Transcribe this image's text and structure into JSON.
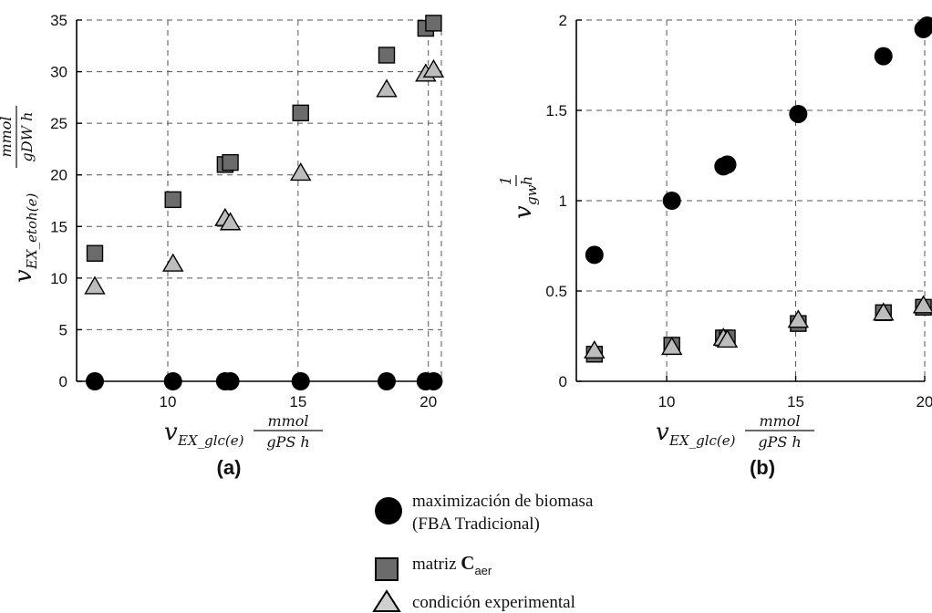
{
  "chart_data": [
    {
      "type": "scatter",
      "caption": "(a)",
      "xlabel": {
        "var": "v",
        "sub": "EX_glc(e)",
        "unit_num": "mmol",
        "unit_den": "gPS   h"
      },
      "ylabel": {
        "var": "v",
        "sub": "EX_etoh(e)",
        "unit_num": "mmol",
        "unit_den": "gDW  h"
      },
      "xlim": [
        6.5,
        20.5
      ],
      "ylim": [
        0,
        35
      ],
      "xticks": [
        10,
        15,
        20
      ],
      "yticks": [
        0,
        5,
        10,
        15,
        20,
        25,
        30,
        35
      ],
      "grid": true,
      "series": [
        {
          "name": "maximización de biomasa (FBA Tradicional)",
          "marker": "circle",
          "color": "#000000",
          "x": [
            7.2,
            10.2,
            12.2,
            12.4,
            15.1,
            18.4,
            19.9,
            20.2
          ],
          "y": [
            0,
            0,
            0,
            0,
            0,
            0,
            0,
            0
          ]
        },
        {
          "name": "matriz Caer",
          "marker": "square",
          "color": "#6b6b6b",
          "x": [
            7.2,
            10.2,
            12.2,
            12.4,
            15.1,
            18.4,
            19.9,
            20.2
          ],
          "y": [
            12.4,
            17.6,
            21.0,
            21.2,
            26.0,
            31.6,
            34.2,
            34.7
          ]
        },
        {
          "name": "condición experimental",
          "marker": "triangle",
          "color": "#bdbdbd",
          "x": [
            7.2,
            10.2,
            12.2,
            12.4,
            15.1,
            18.4,
            19.9,
            20.2
          ],
          "y": [
            9.2,
            11.4,
            15.8,
            15.4,
            20.2,
            28.3,
            29.8,
            30.2
          ]
        }
      ]
    },
    {
      "type": "scatter",
      "caption": "(b)",
      "xlabel": {
        "var": "v",
        "sub": "EX_glc(e)",
        "unit_num": "mmol",
        "unit_den": "gPS   h"
      },
      "ylabel": {
        "var": "v",
        "sub": "gw",
        "unit_num": "1",
        "unit_den": "h"
      },
      "xlim": [
        6.5,
        20.0
      ],
      "ylim": [
        0,
        2
      ],
      "xticks": [
        10,
        15,
        20
      ],
      "xticklabels": [
        "10",
        "15",
        "20"
      ],
      "yticks": [
        0,
        0.5,
        1,
        1.5,
        2
      ],
      "yticklabels": [
        "0",
        "0.5",
        "1",
        "1.5",
        "2"
      ],
      "grid": true,
      "series": [
        {
          "name": "maximización de biomasa (FBA Tradicional)",
          "marker": "circle",
          "color": "#000000",
          "x": [
            7.2,
            10.2,
            12.2,
            12.35,
            15.1,
            18.4,
            19.95,
            20.1
          ],
          "y": [
            0.7,
            1.0,
            1.19,
            1.2,
            1.48,
            1.8,
            1.95,
            1.97
          ]
        },
        {
          "name": "matriz Caer",
          "marker": "square",
          "color": "#6b6b6b",
          "x": [
            7.2,
            10.2,
            12.2,
            12.35,
            15.1,
            18.4,
            19.95
          ],
          "y": [
            0.15,
            0.2,
            0.24,
            0.24,
            0.32,
            0.38,
            0.41
          ]
        },
        {
          "name": "condición experimental",
          "marker": "triangle",
          "color": "#bdbdbd",
          "x": [
            7.2,
            10.2,
            12.2,
            12.35,
            15.1,
            18.4,
            19.95
          ],
          "y": [
            0.17,
            0.19,
            0.24,
            0.23,
            0.34,
            0.38,
            0.42
          ]
        }
      ]
    }
  ],
  "legend": {
    "items": [
      {
        "marker": "circle",
        "line1": "maximización de biomasa",
        "line2": "(FBA Tradicional)"
      },
      {
        "marker": "square",
        "prefix": "matriz ",
        "bold": "C",
        "sub": "aer"
      },
      {
        "marker": "triangle",
        "line1": "condición experimental"
      }
    ]
  }
}
